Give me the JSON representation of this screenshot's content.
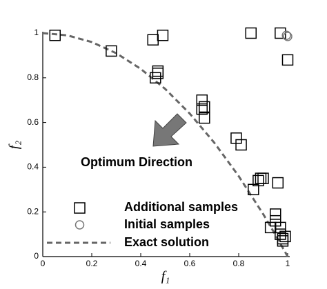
{
  "chart_data": {
    "type": "scatter",
    "xlabel": "f₁",
    "ylabel": "f₂",
    "annotation": "Optimum Direction",
    "xlim": [
      0,
      1
    ],
    "ylim": [
      0,
      1
    ],
    "xticks": [
      0,
      0.2,
      0.4,
      0.6,
      0.8,
      1
    ],
    "yticks": [
      0,
      0.2,
      0.4,
      0.6,
      0.8,
      1
    ],
    "series": [
      {
        "name": "Additional samples",
        "marker": "square",
        "color": "#000000",
        "x": [
          0.05,
          0.28,
          0.45,
          0.49,
          0.85,
          0.97,
          1.0,
          0.46,
          0.47,
          0.47,
          0.65,
          0.66,
          0.65,
          0.66,
          0.79,
          0.81,
          0.89,
          0.88,
          0.9,
          0.86,
          0.96,
          0.95,
          0.95,
          0.93,
          0.97,
          0.97,
          0.98,
          0.98,
          0.99
        ],
        "values": [
          0.99,
          0.92,
          0.97,
          0.99,
          1.0,
          1.0,
          0.88,
          0.8,
          0.83,
          0.82,
          0.7,
          0.67,
          0.66,
          0.62,
          0.53,
          0.5,
          0.35,
          0.34,
          0.35,
          0.3,
          0.33,
          0.19,
          0.16,
          0.13,
          0.13,
          0.1,
          0.08,
          0.07,
          0.09
        ]
      },
      {
        "name": "Initial samples",
        "marker": "circle",
        "color": "#777777",
        "x": [
          0.995,
          1.0
        ],
        "values": [
          0.99,
          0.985
        ]
      },
      {
        "name": "Exact solution",
        "marker": "dashed-line",
        "color": "#666666",
        "x": [
          0,
          0.1,
          0.2,
          0.3,
          0.4,
          0.5,
          0.6,
          0.7,
          0.8,
          0.9,
          0.95,
          1.0
        ],
        "values": [
          1,
          0.99,
          0.96,
          0.91,
          0.84,
          0.75,
          0.64,
          0.51,
          0.36,
          0.19,
          0.0975,
          0
        ]
      }
    ]
  }
}
